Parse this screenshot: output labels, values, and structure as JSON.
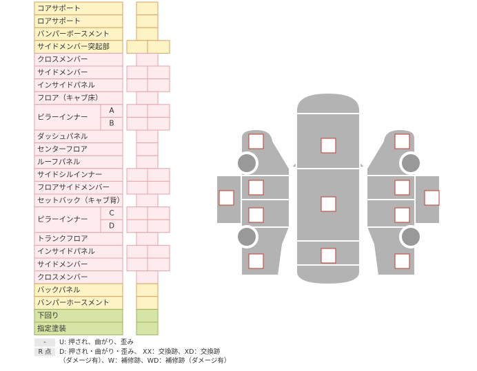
{
  "table": {
    "rows": [
      {
        "label": "コアサポート",
        "color": "yellow",
        "cells": 1
      },
      {
        "label": "ロアサポート",
        "color": "yellow",
        "cells": 1
      },
      {
        "label": "バンパーボースメント",
        "color": "yellow",
        "cells": 1
      },
      {
        "label": "サイドメンバー突起部",
        "color": "yellow",
        "cells": 2
      },
      {
        "label": "クロスメンバー",
        "color": "pink",
        "cells": 1
      },
      {
        "label": "サイドメンバー",
        "color": "pink",
        "cells": 2
      },
      {
        "label": "インサイドパネル",
        "color": "pink",
        "cells": 2
      },
      {
        "label": "フロア（キャブ床）",
        "color": "pink",
        "cells": 1
      },
      {
        "label": "ピラーインナー",
        "subs": [
          "A",
          "B"
        ],
        "color": "pink",
        "cells": 2
      },
      {
        "label": "ダッシュパネル",
        "color": "pink",
        "cells": 1
      },
      {
        "label": "センターフロア",
        "color": "pink",
        "cells": 1
      },
      {
        "label": "ルーフパネル",
        "color": "pink",
        "cells": 1
      },
      {
        "label": "サイドシルインナー",
        "color": "pink",
        "cells": 2
      },
      {
        "label": "フロアサイドメンバー",
        "color": "pink",
        "cells": 2
      },
      {
        "label": "セットバック（キャブ背）",
        "color": "pink",
        "cells": 1
      },
      {
        "label": "ピラーインナー",
        "subs": [
          "C",
          "D"
        ],
        "color": "pink",
        "cells": 2
      },
      {
        "label": "トランクフロア",
        "color": "pink",
        "cells": 1
      },
      {
        "label": "インサイドパネル",
        "color": "pink",
        "cells": 2
      },
      {
        "label": "サイドメンバー",
        "color": "pink",
        "cells": 2
      },
      {
        "label": "クロスメンバー",
        "color": "pink",
        "cells": 1
      },
      {
        "label": "バックパネル",
        "color": "yellow",
        "cells": 1
      },
      {
        "label": "バンパーホースメント",
        "color": "yellow",
        "cells": 1
      },
      {
        "label": "下回り",
        "color": "green",
        "cells": 1
      },
      {
        "label": "指定塗装",
        "color": "green",
        "cells": 1
      }
    ]
  },
  "legend": {
    "items": [
      {
        "key": "-",
        "text": "U: 押され、曲がり、歪み"
      },
      {
        "key": "R 点",
        "text": "D: 押され・曲がり・歪み、 XX：交換跡、XD：交換跡",
        "text2": "（ダメージ有）、W：補修跡、WD：補修跡（ダメージ有）"
      }
    ]
  }
}
